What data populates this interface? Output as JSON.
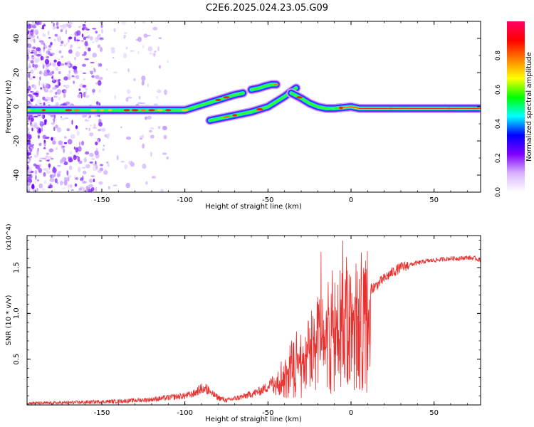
{
  "title": "C2E6.2025.024.23.05.G09",
  "chart_data": [
    {
      "type": "heatmap",
      "xlabel": "Height of straight line (km)",
      "ylabel": "Frequency (Hz)",
      "xlim": [
        -195,
        78
      ],
      "ylim": [
        -50,
        50
      ],
      "xticks": [
        -150,
        -100,
        -50,
        0,
        50
      ],
      "yticks": [
        -40,
        -20,
        0,
        20,
        40
      ],
      "grid": false,
      "colorbar": {
        "label": "Normalized spectral amplitude",
        "range": [
          0,
          1
        ],
        "ticks": [
          "0.0",
          "0.2",
          "0.4",
          "0.6",
          "0.8"
        ],
        "tick_values": [
          0.0,
          0.2,
          0.4,
          0.6,
          0.8
        ],
        "colors": [
          "#ffffff",
          "#d9b3ff",
          "#8000ff",
          "#0000ff",
          "#00ffff",
          "#00ff00",
          "#ffff00",
          "#ff8000",
          "#ff0000",
          "#ff0066"
        ]
      },
      "ridges": [
        {
          "x": [
            -195,
            -150,
            -120,
            -100,
            -90,
            -80,
            -70,
            -65
          ],
          "y": [
            -2,
            -2,
            -2,
            -2,
            1,
            4,
            7,
            8
          ]
        },
        {
          "x": [
            -85,
            -80,
            -70,
            -60,
            -50,
            -45,
            -40,
            -36,
            -33
          ],
          "y": [
            -8,
            -7,
            -5,
            -3,
            0,
            3,
            6,
            9,
            11
          ]
        },
        {
          "x": [
            -60,
            -55,
            -52,
            -48,
            -45
          ],
          "y": [
            10,
            11,
            12,
            13,
            13
          ]
        },
        {
          "x": [
            -36,
            -30,
            -25,
            -20,
            -15,
            -10,
            0,
            5,
            10,
            20,
            40,
            60,
            78
          ],
          "y": [
            8,
            5,
            2,
            0,
            -1,
            -1,
            0,
            -1,
            -1,
            -1,
            -1,
            -1,
            -1
          ]
        }
      ]
    },
    {
      "type": "line",
      "xlabel": "Height of straight line (km)",
      "ylabel": "SNR (10 * v/v)",
      "y_multiplier": "(x10^4)",
      "xlim": [
        -195,
        78
      ],
      "ylim": [
        0,
        1.85
      ],
      "xticks": [
        -150,
        -100,
        -50,
        0,
        50
      ],
      "yticks": [
        0.5,
        1.0,
        1.5
      ],
      "ytick_labels": [
        "0.5",
        "1.0",
        "1.5"
      ],
      "grid": false,
      "color": "#e8312f",
      "envelope": {
        "x": [
          -195,
          -180,
          -160,
          -140,
          -130,
          -120,
          -110,
          -100,
          -95,
          -90,
          -85,
          -80,
          -75,
          -70,
          -65,
          -60,
          -55,
          -50,
          -45,
          -40,
          -35,
          -30,
          -25,
          -20,
          -15,
          -10,
          -5,
          0,
          5,
          10,
          15,
          20,
          25,
          30,
          35,
          40,
          45,
          50,
          55,
          60,
          65,
          70,
          75,
          78
        ],
        "y": [
          0.02,
          0.02,
          0.03,
          0.04,
          0.05,
          0.06,
          0.08,
          0.1,
          0.12,
          0.18,
          0.14,
          0.08,
          0.05,
          0.07,
          0.09,
          0.12,
          0.15,
          0.2,
          0.3,
          0.38,
          0.5,
          0.62,
          0.75,
          0.9,
          1.0,
          1.05,
          1.1,
          1.15,
          1.2,
          1.25,
          1.3,
          1.38,
          1.45,
          1.5,
          1.53,
          1.55,
          1.57,
          1.58,
          1.59,
          1.6,
          1.6,
          1.61,
          1.6,
          1.58
        ]
      }
    }
  ]
}
